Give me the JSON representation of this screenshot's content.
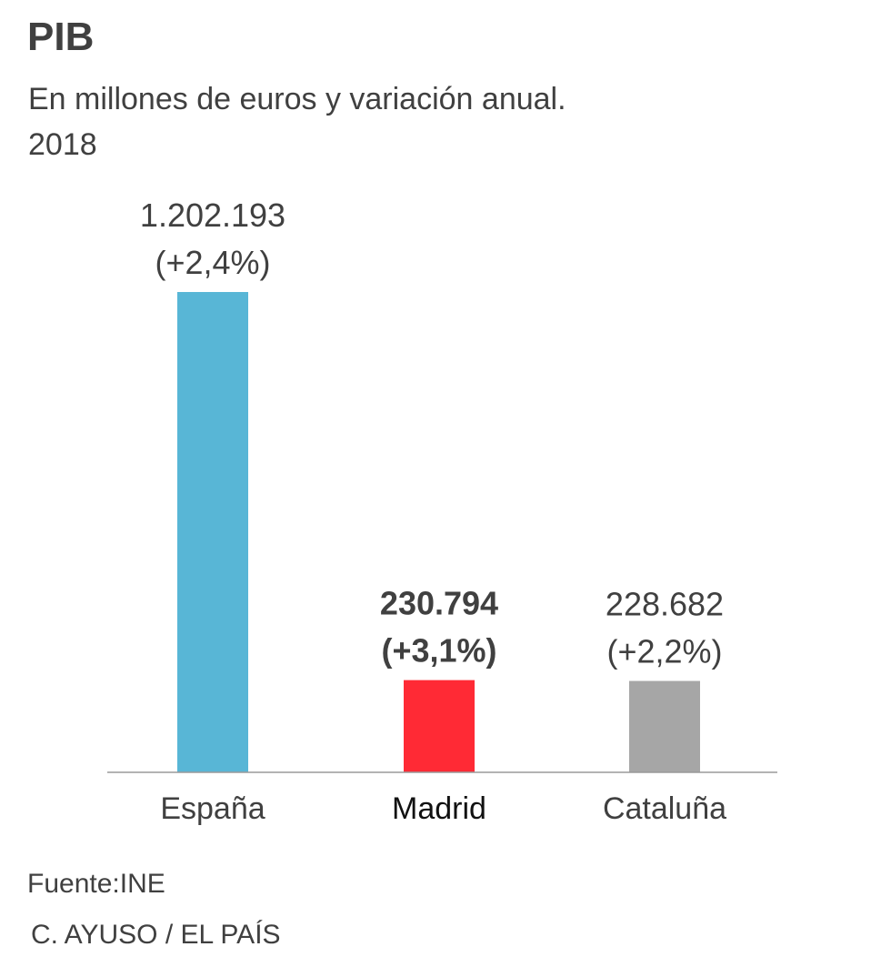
{
  "header": {
    "title": "PIB",
    "subtitle_line1": "En millones de euros y variación anual.",
    "subtitle_line2": "2018"
  },
  "footer": {
    "source": "Fuente:INE",
    "credit": "C. AYUSO / EL PAÍS"
  },
  "chart_data": {
    "type": "bar",
    "title": "PIB",
    "subtitle": "En millones de euros y variación anual. 2018",
    "xlabel": "",
    "ylabel": "",
    "ylim": [
      0,
      1202193
    ],
    "grid": false,
    "legend": "none",
    "categories": [
      "España",
      "Madrid",
      "Cataluña"
    ],
    "values": [
      1202193,
      230794,
      228682
    ],
    "value_labels": [
      "1.202.193",
      "230.794",
      "228.682"
    ],
    "change_labels": [
      "(+2,4%)",
      "(+3,1%)",
      "(+2,2%)"
    ],
    "highlight": [
      false,
      true,
      false
    ],
    "colors": [
      "#58b6d6",
      "#ff2a35",
      "#a6a6a6"
    ],
    "axis_color": "#9a9a9a"
  }
}
